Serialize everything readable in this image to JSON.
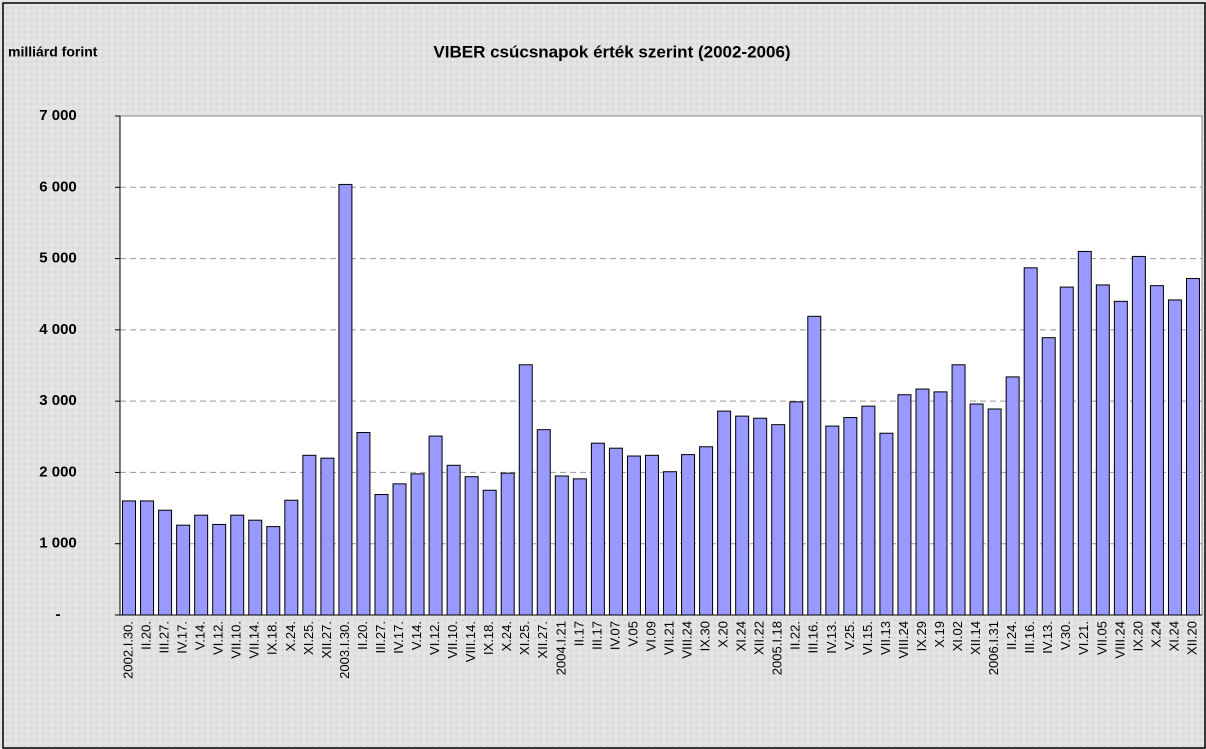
{
  "chart_data": {
    "type": "bar",
    "title": "VIBER csúcsnapok érték szerint (2002-2006)",
    "y_label": "milliárd forint",
    "color": "#9999ff",
    "grid": true,
    "categories": [
      "2002.I.30.",
      "II.20.",
      "III.27.",
      "IV.17.",
      "V.14.",
      "VI.12.",
      "VII.10.",
      "VII.14.",
      "IX.18.",
      "X.24.",
      "XI.25.",
      "XII.27.",
      "2003.I.30.",
      "II.20.",
      "III.27.",
      "IV.17.",
      "V.14.",
      "VI.12.",
      "VII.10.",
      "VIII.14.",
      "IX.18.",
      "X.24.",
      "XI.25.",
      "XII.27.",
      "2004.I.21",
      "II.17",
      "III.17",
      "IV.07",
      "V.05",
      "VI.09",
      "VII.21",
      "VIII.24",
      "IX.30",
      "X.20",
      "XI.24",
      "XII.22",
      "2005.I.18",
      "II.22.",
      "III.16.",
      "IV.13.",
      "V.25.",
      "VI.15.",
      "VII.13",
      "VIII.24",
      "IX.29",
      "X.19",
      "XI.02",
      "XII.14",
      "2006.I.31",
      "II.24.",
      "III.16.",
      "IV.13.",
      "V.30.",
      "VI.21.",
      "VII.05",
      "VIII.24",
      "IX.20",
      "X.24",
      "XI.24",
      "XII.20"
    ],
    "values": [
      1600,
      1600,
      1470,
      1260,
      1400,
      1270,
      1400,
      1330,
      1240,
      1610,
      2240,
      2200,
      6040,
      2560,
      1690,
      1840,
      1980,
      2510,
      2100,
      1940,
      1750,
      1990,
      3510,
      2600,
      1950,
      1910,
      2410,
      2340,
      2230,
      2240,
      2010,
      2250,
      2360,
      2860,
      2790,
      2760,
      2670,
      2990,
      4190,
      2650,
      2770,
      2930,
      2550,
      3090,
      3170,
      3130,
      3510,
      2960,
      2890,
      3340,
      4870,
      3890,
      4600,
      5100,
      4630,
      4400,
      5030,
      4620,
      4420,
      4720
    ],
    "ylim": [
      0,
      7000
    ],
    "yticks": [
      {
        "value": 0,
        "label": "-"
      },
      {
        "value": 1000,
        "label": "1 000"
      },
      {
        "value": 2000,
        "label": "2 000"
      },
      {
        "value": 3000,
        "label": "3 000"
      },
      {
        "value": 4000,
        "label": "4 000"
      },
      {
        "value": 5000,
        "label": "5 000"
      },
      {
        "value": 6000,
        "label": "6 000"
      },
      {
        "value": 7000,
        "label": "7 000"
      }
    ]
  }
}
